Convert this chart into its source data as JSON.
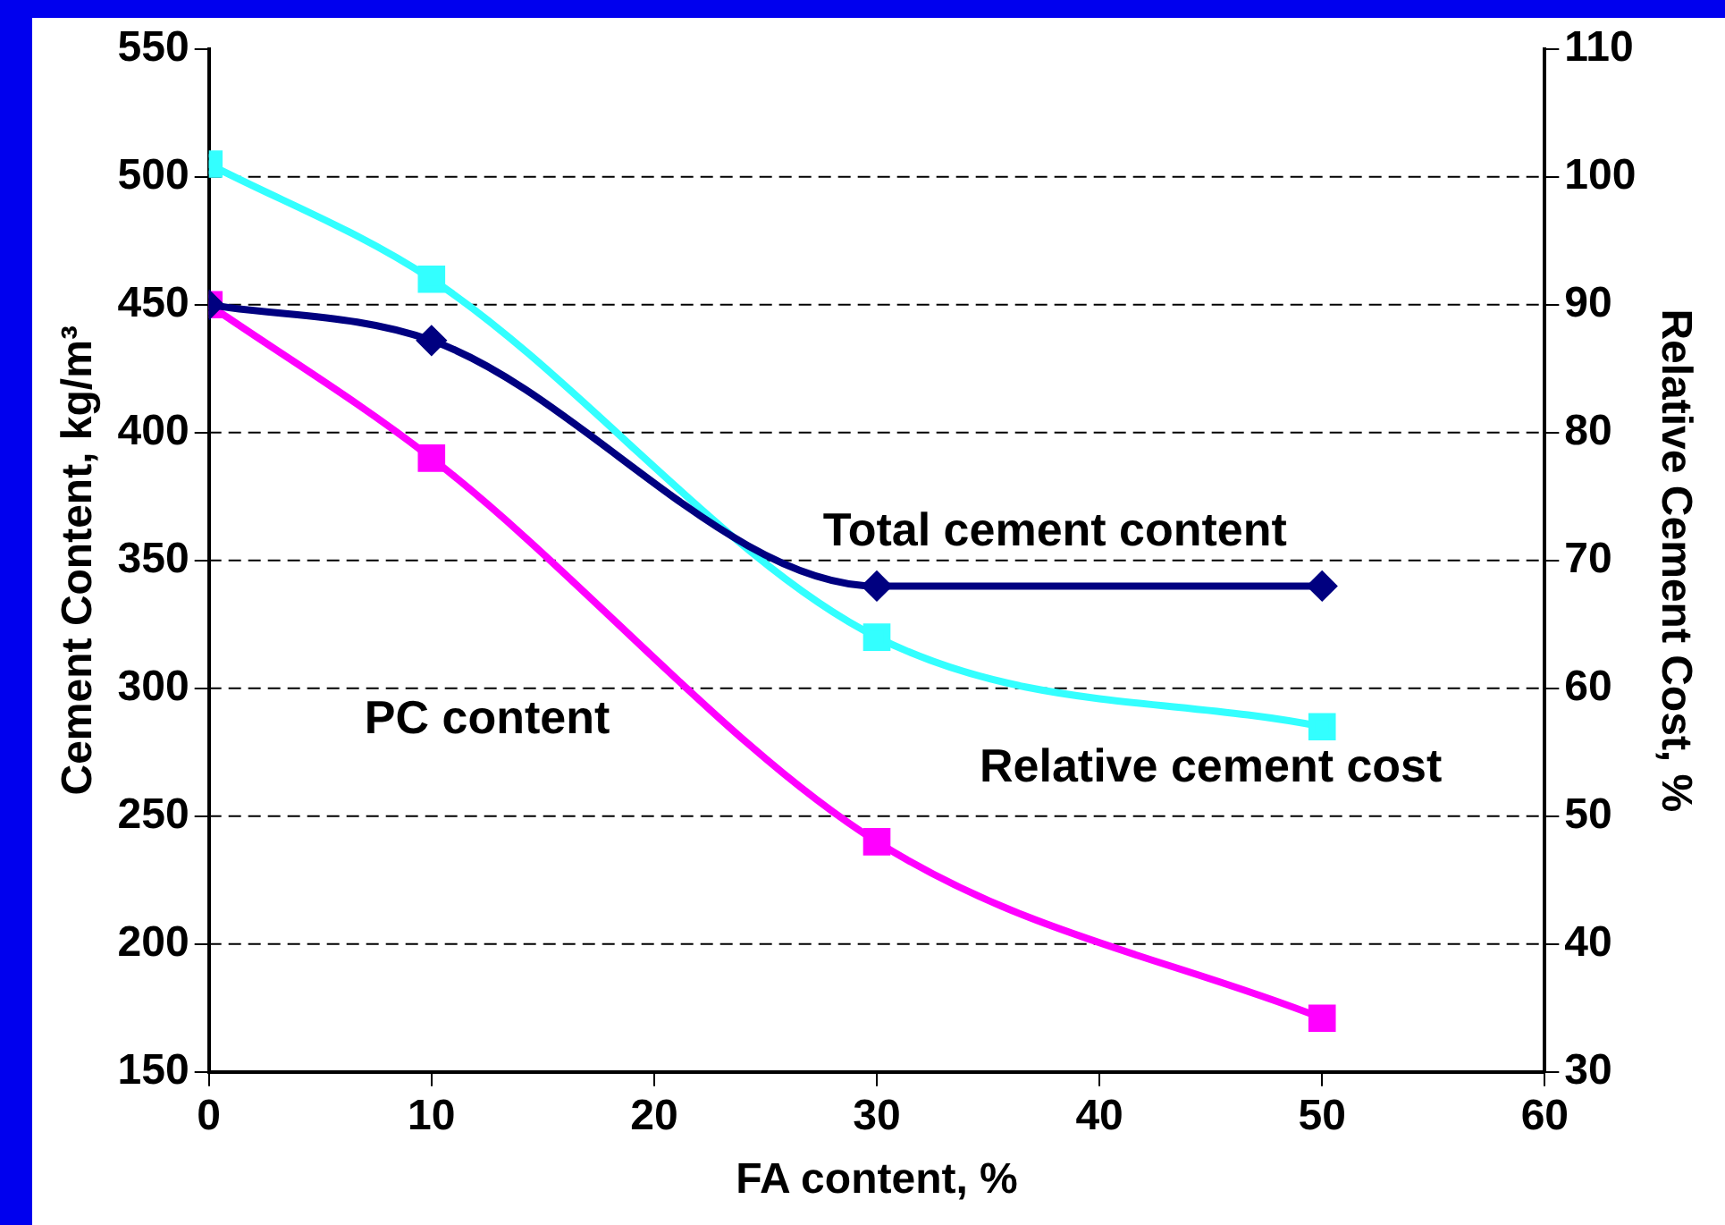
{
  "chart_data": {
    "type": "line",
    "xlabel": "FA content, %",
    "ylabel": "Cement Content, kg/m³",
    "y2label": "Relative Cement Cost, %",
    "x": [
      0,
      10,
      30,
      50
    ],
    "series": [
      {
        "name": "Total cement content",
        "color": "#000080",
        "values": [
          450,
          436,
          340,
          340
        ],
        "marker": "diamond"
      },
      {
        "name": "PC content",
        "color": "#ff00ff",
        "values": [
          450,
          390,
          240,
          171
        ],
        "marker": "square"
      },
      {
        "name": "Relative cement cost",
        "color": "#33ffff",
        "values": [
          101,
          92,
          64,
          57
        ],
        "marker": "square",
        "axis": "y2"
      }
    ],
    "xlim": [
      0,
      60
    ],
    "xticks": [
      0,
      10,
      20,
      30,
      40,
      50,
      60
    ],
    "ylim": [
      150,
      550
    ],
    "yticks": [
      150,
      200,
      250,
      300,
      350,
      400,
      450,
      500,
      550
    ],
    "y2lim": [
      30,
      110
    ],
    "y2ticks": [
      30,
      40,
      50,
      60,
      70,
      80,
      90,
      100,
      110
    ],
    "grid": "y",
    "legend": false,
    "line_style": "solid"
  }
}
